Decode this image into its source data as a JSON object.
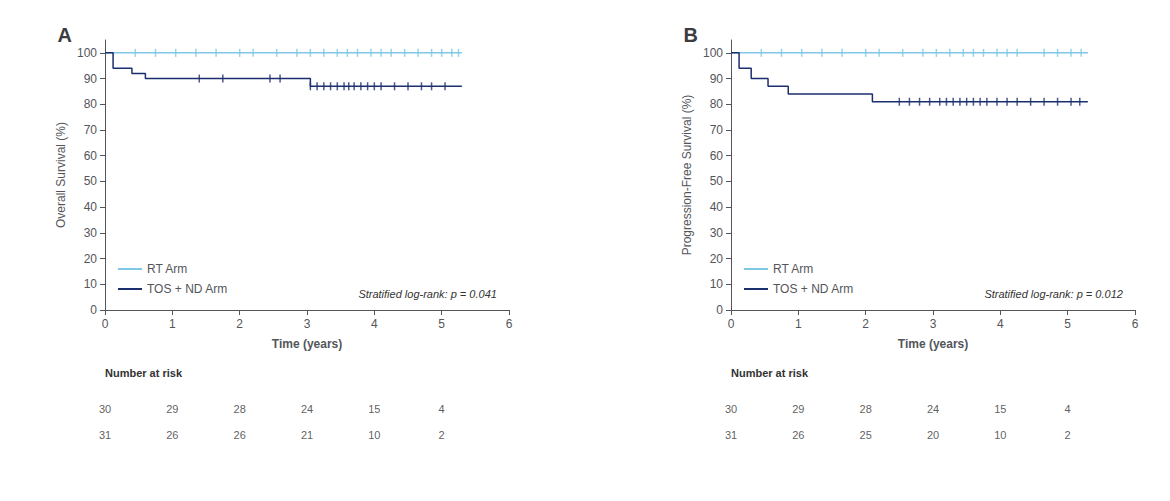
{
  "chart_data": [
    {
      "type": "step",
      "title": "A",
      "xlabel": "Time (years)",
      "ylabel": "Overall Survival (%)",
      "xlim": [
        0,
        6
      ],
      "ylim": [
        0,
        105
      ],
      "xticks": [
        0,
        1,
        2,
        3,
        4,
        5,
        6
      ],
      "yticks": [
        0,
        10,
        20,
        30,
        40,
        50,
        60,
        70,
        80,
        90,
        100
      ],
      "grid": false,
      "legend": "lower left",
      "annotations": [
        "Stratified log-rank: p = 0.041"
      ],
      "series": [
        {
          "name": "RT Arm",
          "color": "#7ec8e3",
          "x": [
            0,
            0.05,
            5.3
          ],
          "values": [
            100,
            100,
            100
          ],
          "marker": "|",
          "censors": {
            "x": [
              0.45,
              0.75,
              1.05,
              1.35,
              1.65,
              2.0,
              2.2,
              2.55,
              2.85,
              3.05,
              3.25,
              3.45,
              3.6,
              3.75,
              3.95,
              4.1,
              4.25,
              4.45,
              4.65,
              4.85,
              5.0,
              5.15,
              5.25
            ],
            "values": [
              100,
              100,
              100,
              100,
              100,
              100,
              100,
              100,
              100,
              100,
              100,
              100,
              100,
              100,
              100,
              100,
              100,
              100,
              100,
              100,
              100,
              100,
              100
            ]
          }
        },
        {
          "name": "TOS + ND Arm",
          "color": "#1b2f6e",
          "x": [
            0,
            0.12,
            0.22,
            0.4,
            0.6,
            0.8,
            2.9,
            3.05,
            5.3
          ],
          "values": [
            100,
            94,
            94,
            92,
            90,
            90,
            90,
            87,
            87
          ],
          "marker": "|",
          "censors": {
            "x": [
              1.4,
              1.75,
              2.45,
              2.6,
              3.05,
              3.15,
              3.25,
              3.35,
              3.45,
              3.55,
              3.62,
              3.7,
              3.8,
              3.9,
              4.0,
              4.1,
              4.3,
              4.5,
              4.7,
              4.85,
              5.05
            ],
            "values": [
              90,
              90,
              90,
              90,
              87,
              87,
              87,
              87,
              87,
              87,
              87,
              87,
              87,
              87,
              87,
              87,
              87,
              87,
              87,
              87,
              87
            ]
          }
        }
      ],
      "number_at_risk": {
        "label": "Number at risk",
        "times": [
          0,
          1,
          2,
          3,
          4,
          5
        ],
        "rows": [
          [
            30,
            29,
            28,
            24,
            15,
            4
          ],
          [
            31,
            26,
            26,
            21,
            10,
            2
          ]
        ]
      }
    },
    {
      "type": "step",
      "title": "B",
      "xlabel": "Time (years)",
      "ylabel": "Progression-Free Survival (%)",
      "xlim": [
        0,
        6
      ],
      "ylim": [
        0,
        105
      ],
      "xticks": [
        0,
        1,
        2,
        3,
        4,
        5,
        6
      ],
      "yticks": [
        0,
        10,
        20,
        30,
        40,
        50,
        60,
        70,
        80,
        90,
        100
      ],
      "grid": false,
      "legend": "lower left",
      "annotations": [
        "Stratified log-rank: p = 0.012"
      ],
      "series": [
        {
          "name": "RT Arm",
          "color": "#7ec8e3",
          "x": [
            0,
            0.05,
            5.3
          ],
          "values": [
            100,
            100,
            100
          ],
          "marker": "|",
          "censors": {
            "x": [
              0.45,
              0.75,
              1.05,
              1.35,
              1.65,
              2.0,
              2.2,
              2.55,
              2.85,
              3.05,
              3.25,
              3.45,
              3.6,
              3.75,
              3.95,
              4.1,
              4.25,
              4.65,
              4.85,
              5.05,
              5.2
            ],
            "values": [
              100,
              100,
              100,
              100,
              100,
              100,
              100,
              100,
              100,
              100,
              100,
              100,
              100,
              100,
              100,
              100,
              100,
              100,
              100,
              100,
              100
            ]
          }
        },
        {
          "name": "TOS + ND Arm",
          "color": "#1b2f6e",
          "x": [
            0,
            0.12,
            0.3,
            0.55,
            0.85,
            1.25,
            2.1,
            2.35,
            5.3
          ],
          "values": [
            100,
            94,
            90,
            87,
            84,
            84,
            81,
            81,
            81
          ],
          "marker": "|",
          "censors": {
            "x": [
              2.5,
              2.65,
              2.8,
              2.95,
              3.1,
              3.2,
              3.3,
              3.4,
              3.5,
              3.6,
              3.7,
              3.8,
              3.95,
              4.1,
              4.25,
              4.45,
              4.65,
              4.85,
              5.05,
              5.18
            ],
            "values": [
              81,
              81,
              81,
              81,
              81,
              81,
              81,
              81,
              81,
              81,
              81,
              81,
              81,
              81,
              81,
              81,
              81,
              81,
              81,
              81
            ]
          }
        }
      ],
      "number_at_risk": {
        "label": "Number at risk",
        "times": [
          0,
          1,
          2,
          3,
          4,
          5
        ],
        "rows": [
          [
            30,
            29,
            28,
            24,
            15,
            4
          ],
          [
            31,
            26,
            25,
            20,
            10,
            2
          ]
        ]
      }
    }
  ]
}
